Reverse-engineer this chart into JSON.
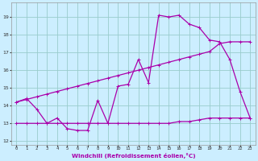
{
  "xlabel": "Windchill (Refroidissement éolien,°C)",
  "bg_color": "#cceeff",
  "grid_color": "#99cccc",
  "line_color": "#aa00aa",
  "xlim": [
    -0.5,
    23.5
  ],
  "ylim": [
    11.8,
    19.8
  ],
  "xticks": [
    0,
    1,
    2,
    3,
    4,
    5,
    6,
    7,
    8,
    9,
    10,
    11,
    12,
    13,
    14,
    15,
    16,
    17,
    18,
    19,
    20,
    21,
    22,
    23
  ],
  "yticks": [
    12,
    13,
    14,
    15,
    16,
    17,
    18,
    19
  ],
  "series1_x": [
    0,
    1,
    2,
    3,
    4,
    5,
    6,
    7,
    8,
    9,
    10,
    11,
    12,
    13,
    14,
    15,
    16,
    17,
    18,
    19,
    20,
    21,
    22,
    23
  ],
  "series1_y": [
    14.2,
    14.4,
    13.8,
    13.0,
    13.3,
    12.7,
    12.6,
    12.6,
    14.3,
    13.0,
    15.1,
    15.2,
    16.6,
    15.3,
    19.1,
    19.0,
    19.1,
    18.6,
    18.4,
    17.7,
    17.6,
    16.6,
    14.8,
    13.3
  ],
  "series2_x": [
    0,
    1,
    2,
    3,
    4,
    5,
    6,
    7,
    8,
    9,
    10,
    11,
    12,
    13,
    14,
    15,
    16,
    17,
    18,
    19,
    20,
    21,
    22,
    23
  ],
  "series2_y": [
    13.0,
    13.0,
    13.0,
    13.0,
    13.0,
    13.0,
    13.0,
    13.0,
    13.0,
    13.0,
    13.0,
    13.0,
    13.0,
    13.0,
    13.0,
    13.0,
    13.1,
    13.1,
    13.2,
    13.3,
    13.3,
    13.3,
    13.3,
    13.3
  ],
  "series3_x": [
    0,
    1,
    2,
    3,
    4,
    5,
    6,
    7,
    8,
    9,
    10,
    11,
    12,
    13,
    14,
    15,
    16,
    17,
    18,
    19,
    20,
    21,
    22,
    23
  ],
  "series3_y": [
    14.2,
    14.35,
    14.5,
    14.65,
    14.8,
    14.95,
    15.1,
    15.25,
    15.4,
    15.55,
    15.7,
    15.85,
    16.0,
    16.15,
    16.3,
    16.45,
    16.6,
    16.75,
    16.9,
    17.05,
    17.5,
    17.6,
    17.6,
    17.6
  ]
}
